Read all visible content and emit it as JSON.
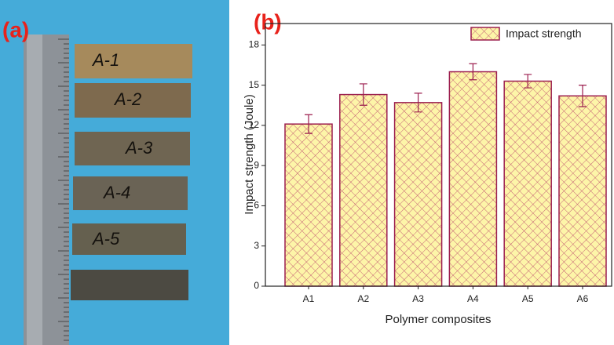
{
  "photo": {
    "label": "(a)",
    "specimens": [
      "A-1",
      "A-2",
      "A-3",
      "A-4",
      "A-5"
    ]
  },
  "chart_data": {
    "type": "bar",
    "panel_label": "(b)",
    "y_label": "Impact strength (Joule)",
    "x_label": "Polymer composites",
    "categories": [
      "A1",
      "A2",
      "A3",
      "A4",
      "A5",
      "A6"
    ],
    "series": [
      {
        "name": "Impact strength",
        "color": "#fdf5a8",
        "edge_color": "#9c1f4f",
        "values": [
          12.1,
          14.3,
          13.7,
          16.0,
          15.3,
          14.2
        ],
        "errors": [
          0.7,
          0.8,
          0.7,
          0.6,
          0.5,
          0.8
        ]
      }
    ],
    "ylim": [
      0,
      19.6
    ],
    "yticks": [
      0,
      3,
      6,
      9,
      12,
      15,
      18
    ],
    "legend": "top-right"
  }
}
